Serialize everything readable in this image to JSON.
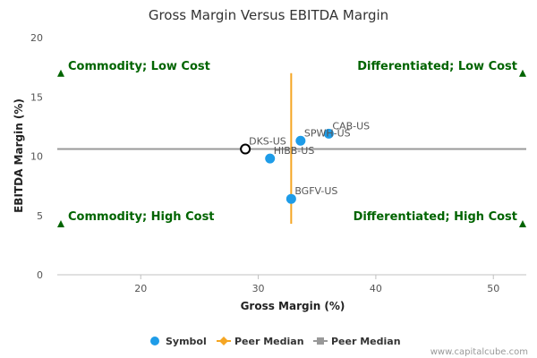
{
  "chart_data": {
    "type": "scatter",
    "title": "Gross Margin Versus EBITDA Margin",
    "xlabel": "Gross Margin (%)",
    "ylabel": "EBITDA Margin (%)",
    "xlim": [
      12.9,
      52.8
    ],
    "ylim": [
      0,
      20
    ],
    "xticks": [
      20,
      30,
      40,
      50
    ],
    "yticks": [
      0,
      5,
      10,
      15,
      20
    ],
    "points": [
      {
        "label": "CAB-US",
        "x": 36.0,
        "y": 11.9,
        "color": "#1E9CE8"
      },
      {
        "label": "SPWH-US",
        "x": 33.6,
        "y": 11.3,
        "color": "#1E9CE8"
      },
      {
        "label": "DKS-US",
        "x": 28.9,
        "y": 10.6,
        "color": "#ffffff",
        "stroke": "#000000"
      },
      {
        "label": "HIBB-US",
        "x": 31.0,
        "y": 9.8,
        "color": "#1E9CE8"
      },
      {
        "label": "BGFV-US",
        "x": 32.8,
        "y": 6.4,
        "color": "#1E9CE8"
      }
    ],
    "peer_median_x": {
      "value": 32.8,
      "y_range": [
        4.3,
        17.0
      ],
      "color": "#F5A623"
    },
    "peer_median_y": {
      "value": 10.6,
      "x_range": [
        12.9,
        52.8
      ],
      "color": "#999999"
    },
    "quadrants": [
      {
        "text": "Commodity; Low Cost",
        "corner": "top-left"
      },
      {
        "text": "Differentiated; Low Cost",
        "corner": "top-right"
      },
      {
        "text": "Commodity; High Cost",
        "corner": "bottom-left"
      },
      {
        "text": "Differentiated; High Cost",
        "corner": "bottom-right"
      }
    ],
    "quadrant_color": "#006400",
    "grid": false,
    "legend": {
      "position": "bottom",
      "items": [
        {
          "label": "Symbol",
          "symbol": "circle",
          "color": "#1E9CE8"
        },
        {
          "label": "Peer Median",
          "symbol": "diamond-line",
          "color": "#F5A623"
        },
        {
          "label": "Peer Median",
          "symbol": "square-line",
          "color": "#999999"
        }
      ]
    },
    "credit": "www.capitalcube.com"
  }
}
